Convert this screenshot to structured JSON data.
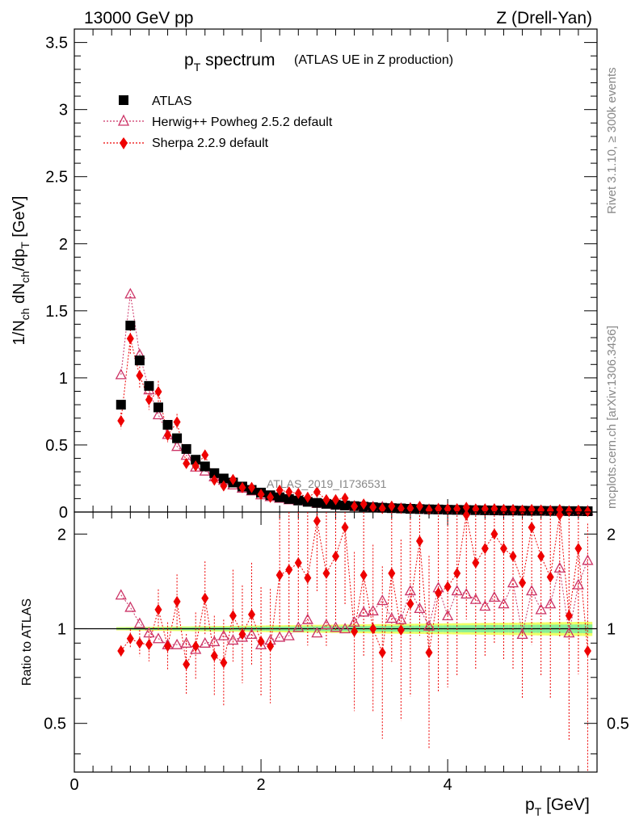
{
  "header": {
    "energy_label": "13000 GeV pp",
    "process_label": "Z (Drell-Yan)"
  },
  "side_labels": {
    "rivet": "Rivet 3.1.10, ≥ 300k events",
    "mcplots": "mcplots.cern.ch [arXiv:1306.3436]"
  },
  "plot_title": {
    "main": "p",
    "main_sub": "T",
    "main_rest": " spectrum",
    "detail": "(ATLAS UE in Z production)"
  },
  "watermark": "ATLAS_2019_I1736531",
  "legend": {
    "atlas": "ATLAS",
    "herwig": "Herwig++ Powheg 2.5.2 default",
    "sherpa": "Sherpa 2.2.9 default"
  },
  "colors": {
    "atlas": "#000000",
    "herwig": "#cc3366",
    "sherpa": "#ee0000",
    "band_outer": "#eeff66",
    "band_inner": "#88ee99"
  },
  "axes": {
    "upper_ylabel": "1/N_ch dN_ch/dp_T [GeV]",
    "lower_ylabel": "Ratio to ATLAS",
    "xlabel": "p_T [GeV]",
    "upper_yticks": [
      "0",
      "0.5",
      "1",
      "1.5",
      "2",
      "2.5",
      "3",
      "3.5"
    ],
    "lower_yticks": [
      "0.5",
      "1",
      "2"
    ],
    "xticks": [
      "0",
      "2",
      "4"
    ]
  },
  "chart_data": {
    "type": "scatter",
    "title": "pT spectrum (ATLAS UE in Z production)",
    "xlabel": "pT [GeV]",
    "ylabel": "1/Nch dNch/dpT [GeV]",
    "xlim": [
      0,
      5.6
    ],
    "ylim": [
      0,
      3.6
    ],
    "ratio_ylim": [
      0.35,
      2.35
    ],
    "x": [
      0.5,
      0.6,
      0.7,
      0.8,
      0.9,
      1.0,
      1.1,
      1.2,
      1.3,
      1.4,
      1.5,
      1.6,
      1.7,
      1.8,
      1.9,
      2.0,
      2.1,
      2.2,
      2.3,
      2.4,
      2.5,
      2.6,
      2.7,
      2.8,
      2.9,
      3.0,
      3.1,
      3.2,
      3.3,
      3.4,
      3.5,
      3.6,
      3.7,
      3.8,
      3.9,
      4.0,
      4.1,
      4.2,
      4.3,
      4.4,
      4.5,
      4.6,
      4.7,
      4.8,
      4.9,
      5.0,
      5.1,
      5.2,
      5.3,
      5.4,
      5.5
    ],
    "series": [
      {
        "name": "ATLAS",
        "values": [
          0.8,
          1.39,
          1.13,
          0.94,
          0.78,
          0.65,
          0.55,
          0.47,
          0.39,
          0.34,
          0.29,
          0.25,
          0.22,
          0.19,
          0.165,
          0.145,
          0.125,
          0.11,
          0.097,
          0.086,
          0.076,
          0.068,
          0.061,
          0.054,
          0.049,
          0.044,
          0.04,
          0.036,
          0.032,
          0.029,
          0.027,
          0.024,
          0.022,
          0.02,
          0.019,
          0.017,
          0.016,
          0.015,
          0.014,
          0.013,
          0.012,
          0.011,
          0.011,
          0.01,
          0.009,
          0.009,
          0.008,
          0.008,
          0.007,
          0.007,
          0.006
        ]
      },
      {
        "name": "Herwig++ Powheg 2.5.2 default",
        "ratio": [
          1.28,
          1.17,
          1.04,
          0.97,
          0.93,
          0.89,
          0.89,
          0.9,
          0.86,
          0.9,
          0.91,
          0.95,
          0.92,
          0.94,
          0.96,
          0.89,
          0.92,
          0.94,
          0.95,
          1.01,
          1.07,
          0.97,
          1.03,
          1.01,
          1.0,
          1.05,
          1.13,
          1.14,
          1.23,
          1.08,
          1.07,
          1.32,
          1.16,
          1.02,
          1.35,
          1.1,
          1.32,
          1.29,
          1.24,
          1.18,
          1.26,
          1.2,
          1.4,
          0.96,
          1.32,
          1.15,
          1.2,
          1.56,
          0.97,
          1.38,
          1.65
        ]
      },
      {
        "name": "Sherpa 2.2.9 default",
        "ratio": [
          0.85,
          0.93,
          0.9,
          0.89,
          1.15,
          0.88,
          1.22,
          0.77,
          0.88,
          1.25,
          0.82,
          0.78,
          1.1,
          0.96,
          1.11,
          0.91,
          0.88,
          1.48,
          1.54,
          1.62,
          1.45,
          2.2,
          1.5,
          1.7,
          2.1,
          0.98,
          1.48,
          1.0,
          0.84,
          1.5,
          0.99,
          1.2,
          1.9,
          0.84,
          1.3,
          1.36,
          1.5,
          2.3,
          1.62,
          1.8,
          2.0,
          1.8,
          1.7,
          1.4,
          2.1,
          1.7,
          1.46,
          2.3,
          1.1,
          1.8,
          0.85
        ]
      }
    ]
  }
}
